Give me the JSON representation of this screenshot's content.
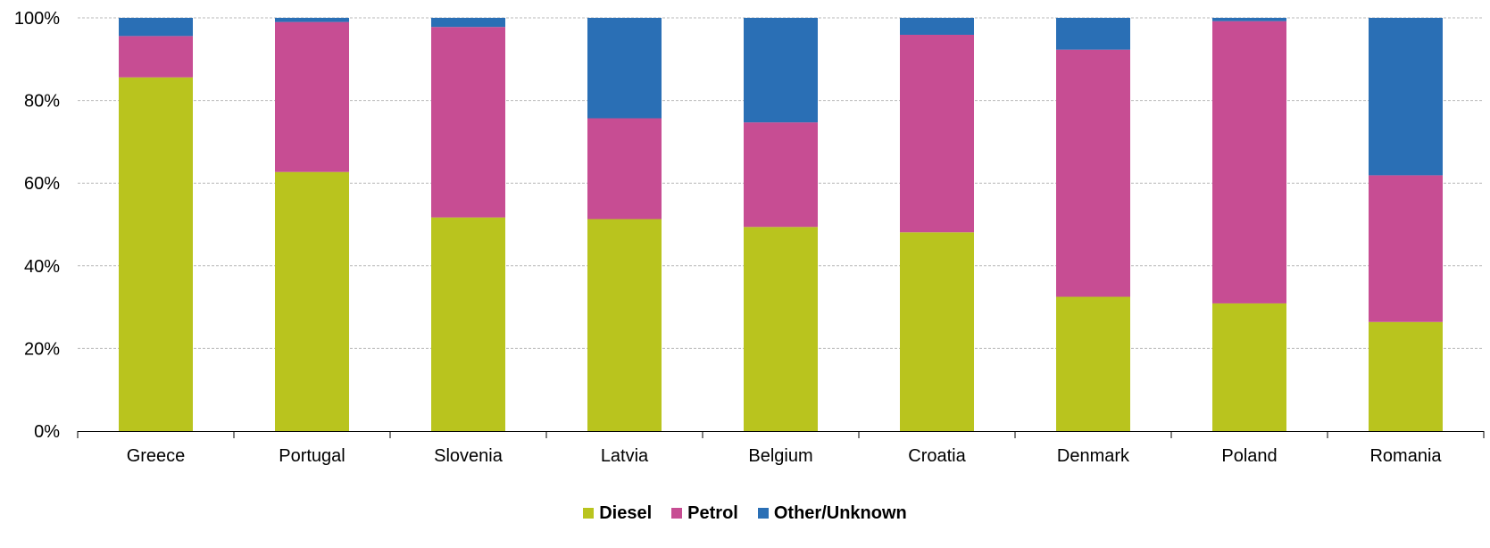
{
  "chart_data": {
    "type": "bar",
    "stacked": true,
    "title": "",
    "xlabel": "",
    "ylabel": "",
    "ylim": [
      0,
      100
    ],
    "yticks": [
      "0%",
      "20%",
      "40%",
      "60%",
      "80%",
      "100%"
    ],
    "grid": true,
    "legend_position": "bottom-center",
    "categories": [
      "Greece",
      "Portugal",
      "Slovenia",
      "Latvia",
      "Belgium",
      "Croatia",
      "Denmark",
      "Poland",
      "Romania"
    ],
    "series": [
      {
        "name": "Diesel",
        "color": "#b9c41e",
        "values": [
          85.6,
          62.7,
          51.7,
          51.3,
          49.4,
          48.1,
          32.5,
          30.9,
          26.4
        ]
      },
      {
        "name": "Petrol",
        "color": "#c74d93",
        "values": [
          10.0,
          36.3,
          46.1,
          24.4,
          25.3,
          47.8,
          59.8,
          68.3,
          35.5
        ]
      },
      {
        "name": "Other/Unknown",
        "color": "#2a6fb5",
        "values": [
          4.4,
          1.0,
          2.2,
          24.3,
          25.3,
          4.1,
          7.7,
          0.8,
          38.1
        ]
      }
    ]
  },
  "legend": {
    "items": [
      {
        "label": "Diesel",
        "color": "#b9c41e"
      },
      {
        "label": "Petrol",
        "color": "#c74d93"
      },
      {
        "label": "Other/Unknown",
        "color": "#2a6fb5"
      }
    ]
  }
}
